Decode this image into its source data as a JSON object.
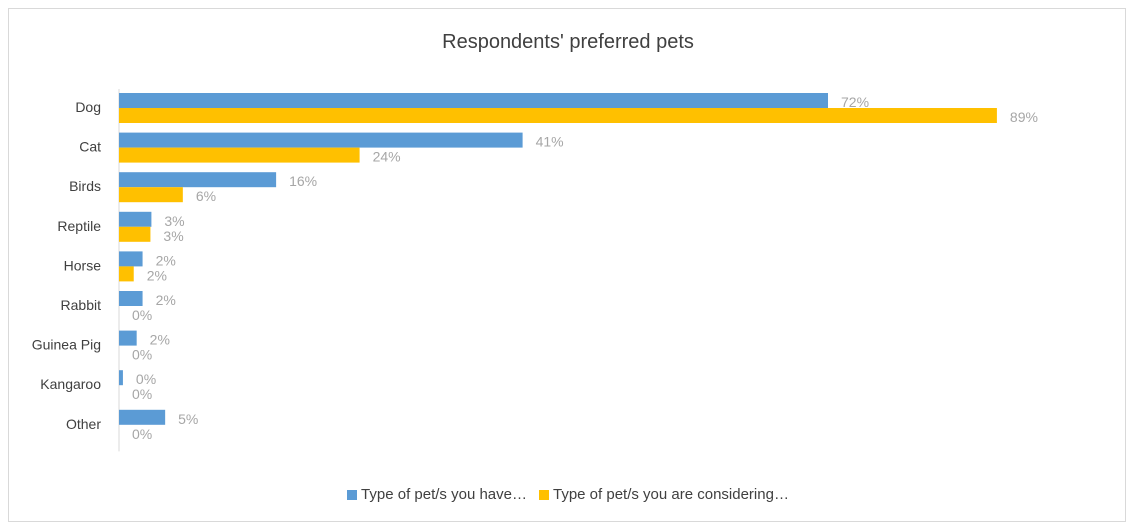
{
  "chart_data": {
    "type": "bar",
    "orientation": "horizontal",
    "title": "Respondents' preferred pets",
    "categories": [
      "Dog",
      "Cat",
      "Birds",
      "Reptile",
      "Horse",
      "Rabbit",
      "Guinea Pig",
      "Kangaroo",
      "Other"
    ],
    "series": [
      {
        "name": "Type of pet/s you have…",
        "color": "#5b9bd5",
        "values": [
          72,
          41,
          16,
          3,
          2,
          2,
          2,
          0,
          5
        ],
        "labels": [
          "72%",
          "41%",
          "16%",
          "3%",
          "2%",
          "2%",
          "2%",
          "0%",
          "5%"
        ],
        "bar_lengths": [
          72.2,
          41.1,
          16.0,
          3.3,
          2.4,
          2.4,
          1.8,
          0.4,
          4.7
        ]
      },
      {
        "name": "Type of pet/s you are considering…",
        "color": "#ffc000",
        "values": [
          89,
          24,
          6,
          3,
          2,
          0,
          0,
          0,
          0
        ],
        "labels": [
          "89%",
          "24%",
          "6%",
          "3%",
          "2%",
          "0%",
          "0%",
          "0%",
          "0%"
        ],
        "bar_lengths": [
          89.4,
          24.5,
          6.5,
          3.2,
          1.5,
          0,
          0,
          0,
          0
        ]
      }
    ],
    "xlim": [
      0,
      100
    ],
    "grid": false,
    "legend": "bottom"
  }
}
